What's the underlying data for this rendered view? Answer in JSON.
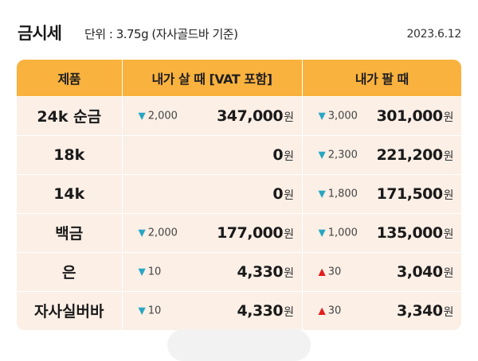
{
  "header": {
    "title": "금시세",
    "unit": "단위 : 3.75g (자사골드바 기준)",
    "date": "2023.6.12"
  },
  "table": {
    "columns": [
      "제품",
      "내가 살 때 [VAT 포함]",
      "내가 팔 때"
    ],
    "currency": "원",
    "rows": [
      {
        "product": "24k 순금",
        "buy": {
          "direction": "down",
          "change": "2,000",
          "price": "347,000"
        },
        "sell": {
          "direction": "down",
          "change": "3,000",
          "price": "301,000"
        }
      },
      {
        "product": "18k",
        "buy": {
          "direction": "",
          "change": "",
          "price": "0"
        },
        "sell": {
          "direction": "down",
          "change": "2,300",
          "price": "221,200"
        }
      },
      {
        "product": "14k",
        "buy": {
          "direction": "",
          "change": "",
          "price": "0"
        },
        "sell": {
          "direction": "down",
          "change": "1,800",
          "price": "171,500"
        }
      },
      {
        "product": "백금",
        "buy": {
          "direction": "down",
          "change": "2,000",
          "price": "177,000"
        },
        "sell": {
          "direction": "down",
          "change": "1,000",
          "price": "135,000"
        }
      },
      {
        "product": "은",
        "buy": {
          "direction": "down",
          "change": "10",
          "price": "4,330"
        },
        "sell": {
          "direction": "up",
          "change": "30",
          "price": "3,040"
        }
      },
      {
        "product": "자사실버바",
        "buy": {
          "direction": "down",
          "change": "10",
          "price": "4,330"
        },
        "sell": {
          "direction": "up",
          "change": "30",
          "price": "3,340"
        }
      }
    ]
  },
  "colors": {
    "header_bg": "#fab23e",
    "row_bg": "#fbefe6",
    "down": "#29a6c2",
    "up": "#e31c1c"
  }
}
